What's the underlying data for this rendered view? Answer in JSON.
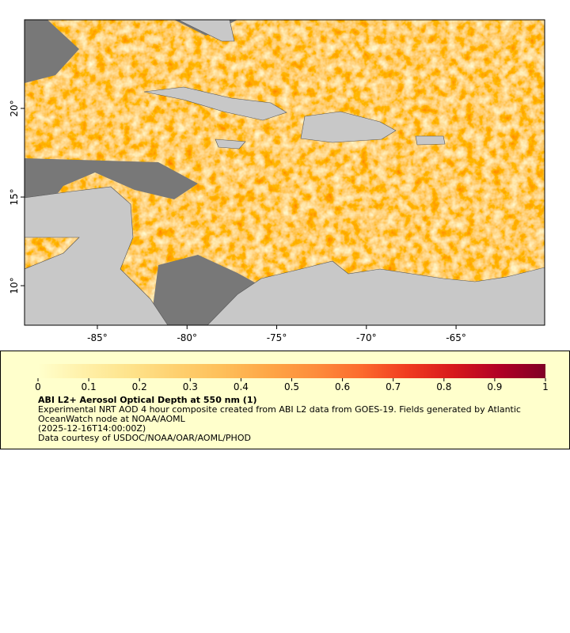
{
  "map": {
    "xlim": [
      -89.06,
      -60.06
    ],
    "ylim": [
      7.77,
      25
    ],
    "xticks": [
      {
        "value": -85,
        "label": "-85°"
      },
      {
        "value": -80,
        "label": "-80°"
      },
      {
        "value": -75,
        "label": "-75°"
      },
      {
        "value": -70,
        "label": "-70°"
      },
      {
        "value": -65,
        "label": "-65°"
      }
    ],
    "yticks": [
      {
        "value": 20,
        "label": "20°"
      },
      {
        "value": 15,
        "label": "15°"
      },
      {
        "value": 10,
        "label": "10°"
      }
    ]
  },
  "colorbar": {
    "range": [
      0,
      1
    ],
    "ticks": [
      0,
      0.1,
      0.2,
      0.3,
      0.4,
      0.5,
      0.6,
      0.7,
      0.8,
      0.9,
      1
    ],
    "colors": [
      "#ffffcc",
      "#fff0a8",
      "#fee38b",
      "#fed06f",
      "#febf5a",
      "#fea646",
      "#fd8d3c",
      "#fc6b2e",
      "#f03b20",
      "#d7191c",
      "#b10026",
      "#800026"
    ]
  },
  "legend": {
    "title": "ABI L2+ Aerosol Optical Depth at 550 nm (1)",
    "description": "Experimental NRT AOD 4 hour composite created from ABI L2 data from GOES-19. Fields generated by Atlantic OceanWatch node at NOAA/AOML",
    "timestamp": "(2025-12-16T14:00:00Z)",
    "credit": "Data courtesy of USDOC/NOAA/OAR/AOML/PHOD"
  }
}
